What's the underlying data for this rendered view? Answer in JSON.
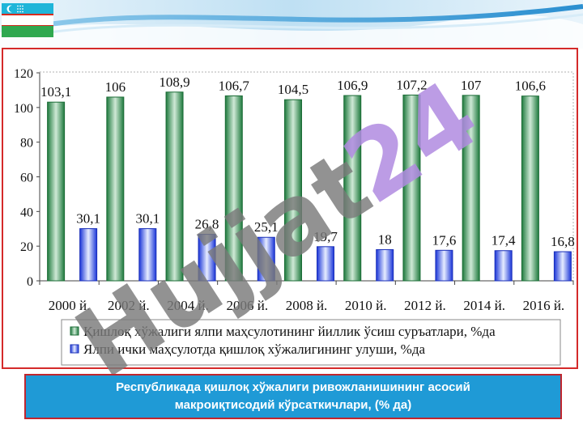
{
  "colors": {
    "series1": "#3a9a5a",
    "series2": "#3355ee",
    "frame_border": "#d42a2a",
    "caption_bg": "#1f9ad6",
    "watermark_gray": "#7a7a7a",
    "watermark_violet": "#b08be0"
  },
  "icons": {
    "flag": "uzbekistan-flag-icon"
  },
  "watermark": {
    "text_gray": "Hujjat",
    "text_violet": "24"
  },
  "caption": {
    "text": "Республикада қишлоқ хўжалиги ривожланишининг асосий макроиқтисодий кўрсаткичлари, (% да)"
  },
  "chart_data": {
    "type": "bar",
    "categories": [
      "2000 й.",
      "2002 й.",
      "2004 й.",
      "2006 й.",
      "2008 й.",
      "2010 й.",
      "2012 й.",
      "2014 й.",
      "2016 й."
    ],
    "series": [
      {
        "name": "Қишлоқ хўжалиги ялпи маҳсулотининг йиллик ўсиш суръатлари, %да",
        "values": [
          103.1,
          106,
          108.9,
          106.7,
          104.5,
          106.9,
          107.2,
          107,
          106.6
        ],
        "labels": [
          "103,1",
          "106",
          "108,9",
          "106,7",
          "104,5",
          "106,9",
          "107,2",
          "107",
          "106,6"
        ]
      },
      {
        "name": "Ялпи ички маҳсулотда қишлоқ хўжалигининг улуши, %да",
        "values": [
          30.1,
          30.1,
          26.8,
          25.1,
          19.7,
          18,
          17.6,
          17.4,
          16.8
        ],
        "labels": [
          "30,1",
          "30,1",
          "26,8",
          "25,1",
          "19,7",
          "18",
          "17,6",
          "17,4",
          "16,8"
        ]
      }
    ],
    "yticks": [
      "0",
      "20",
      "40",
      "60",
      "80",
      "100",
      "120"
    ],
    "ylim": [
      0,
      120
    ],
    "grid": false,
    "legend_position": "bottom",
    "title": "",
    "xlabel": "",
    "ylabel": ""
  }
}
